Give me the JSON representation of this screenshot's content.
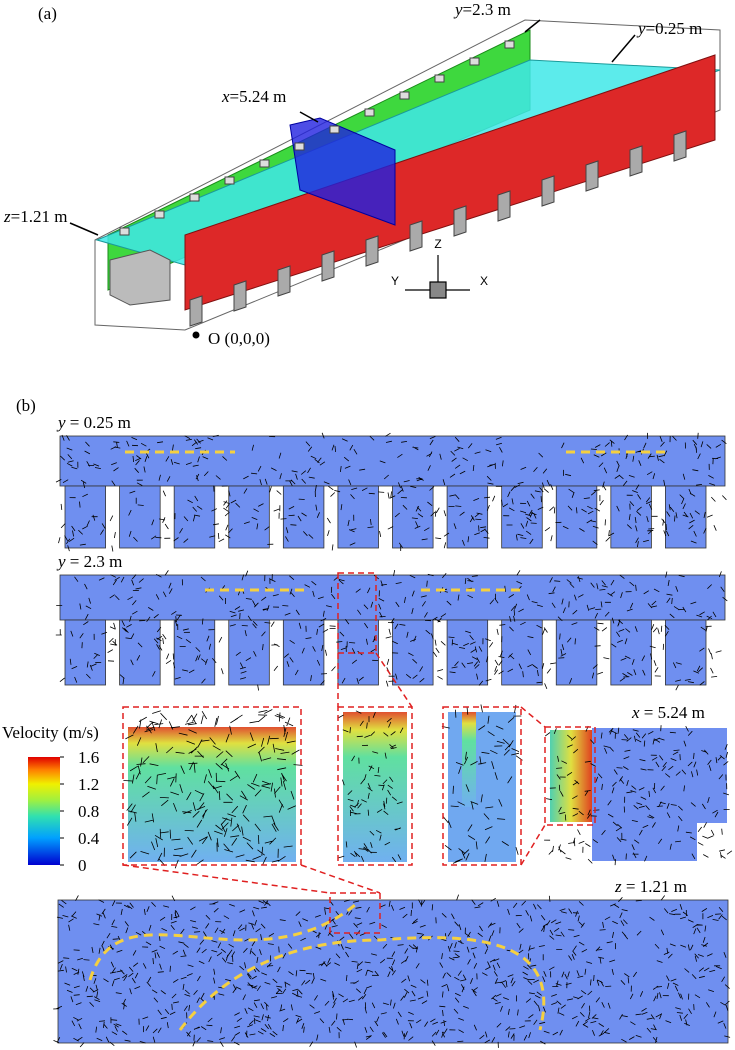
{
  "panel_a": {
    "label": "(a)",
    "planes": {
      "y_back": {
        "var": "y",
        "text": "=2.3 m"
      },
      "y_front": {
        "var": "y",
        "text": "=0.25 m"
      },
      "x_plane": {
        "var": "x",
        "text": "=5.24 m"
      },
      "z_plane": {
        "var": "z",
        "text": "=1.21 m"
      }
    },
    "axes": {
      "z": "Z",
      "y": "Y",
      "x": "X"
    },
    "origin": "O (0,0,0)"
  },
  "panel_b": {
    "label": "(b)",
    "slices": {
      "y1": {
        "var": "y",
        "text": " = 0.25 m"
      },
      "y2": {
        "var": "y",
        "text": " = 2.3 m"
      },
      "x": {
        "var": "x",
        "text": " = 5.24 m"
      },
      "z": {
        "var": "z",
        "text": " = 1.21 m"
      }
    },
    "colorbar": {
      "title": "Velocity (m/s)",
      "range": [
        0,
        1.6
      ],
      "ticks": [
        1.6,
        1.2,
        0.8,
        0.4,
        0
      ]
    }
  }
}
